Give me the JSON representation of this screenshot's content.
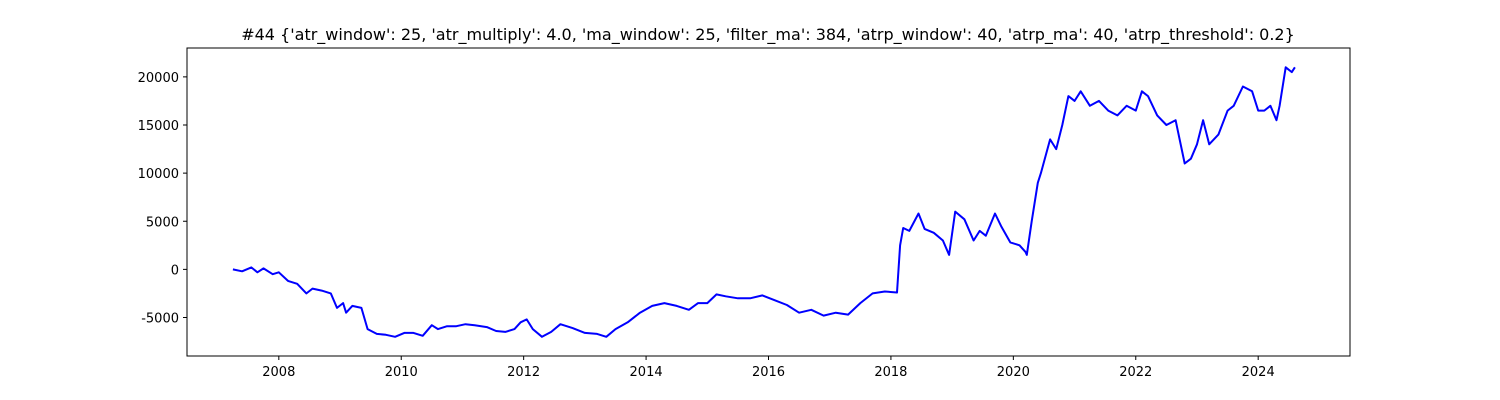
{
  "chart_data": {
    "type": "line",
    "title": "#44 {'atr_window': 25, 'atr_multiply': 4.0, 'ma_window': 25, 'filter_ma': 384, 'atrp_window': 40, 'atrp_ma': 40, 'atrp_threshold': 0.2}",
    "xlabel": "",
    "ylabel": "",
    "xlim": [
      2006.5,
      2025.5
    ],
    "ylim": [
      -9000,
      23000
    ],
    "x_ticks": [
      2008,
      2010,
      2012,
      2014,
      2016,
      2018,
      2020,
      2022,
      2024
    ],
    "y_ticks": [
      -5000,
      0,
      5000,
      10000,
      15000,
      20000
    ],
    "grid": false,
    "legend": "none",
    "line_color": "#0000ff",
    "series": [
      {
        "x": [
          2007.25,
          2007.4,
          2007.55,
          2007.65,
          2007.75,
          2007.9,
          2008.0,
          2008.15,
          2008.3,
          2008.45,
          2008.55,
          2008.7,
          2008.85,
          2008.95,
          2009.05,
          2009.1,
          2009.2,
          2009.35,
          2009.45,
          2009.6,
          2009.75,
          2009.9,
          2010.05,
          2010.2,
          2010.35,
          2010.5,
          2010.6,
          2010.75,
          2010.9,
          2011.05,
          2011.2,
          2011.4,
          2011.55,
          2011.7,
          2011.85,
          2011.95,
          2012.05,
          2012.15,
          2012.3,
          2012.45,
          2012.6,
          2012.8,
          2013.0,
          2013.2,
          2013.35,
          2013.5,
          2013.7,
          2013.9,
          2014.1,
          2014.3,
          2014.5,
          2014.7,
          2014.85,
          2015.0,
          2015.15,
          2015.3,
          2015.5,
          2015.7,
          2015.9,
          2016.1,
          2016.3,
          2016.5,
          2016.7,
          2016.9,
          2017.1,
          2017.3,
          2017.5,
          2017.7,
          2017.9,
          2018.1,
          2018.15,
          2018.2,
          2018.3,
          2018.45,
          2018.55,
          2018.7,
          2018.85,
          2018.95,
          2019.05,
          2019.2,
          2019.35,
          2019.45,
          2019.55,
          2019.7,
          2019.8,
          2019.95,
          2020.1,
          2020.2,
          2020.22,
          2020.3,
          2020.4,
          2020.45,
          2020.6,
          2020.7,
          2020.8,
          2020.9,
          2021.0,
          2021.1,
          2021.25,
          2021.4,
          2021.55,
          2021.7,
          2021.85,
          2022.0,
          2022.1,
          2022.2,
          2022.35,
          2022.5,
          2022.65,
          2022.8,
          2022.9,
          2023.0,
          2023.1,
          2023.2,
          2023.35,
          2023.5,
          2023.6,
          2023.75,
          2023.9,
          2024.0,
          2024.1,
          2024.2,
          2024.3,
          2024.35,
          2024.45,
          2024.55,
          2024.6
        ],
        "y": [
          0,
          -200,
          200,
          -300,
          100,
          -500,
          -300,
          -1200,
          -1500,
          -2500,
          -2000,
          -2200,
          -2500,
          -4000,
          -3500,
          -4500,
          -3800,
          -4000,
          -6200,
          -6700,
          -6800,
          -7000,
          -6600,
          -6600,
          -6900,
          -5800,
          -6200,
          -5900,
          -5900,
          -5700,
          -5800,
          -6000,
          -6400,
          -6500,
          -6200,
          -5500,
          -5200,
          -6200,
          -7000,
          -6500,
          -5700,
          -6100,
          -6600,
          -6700,
          -7000,
          -6200,
          -5500,
          -4500,
          -3800,
          -3500,
          -3800,
          -4200,
          -3500,
          -3500,
          -2600,
          -2800,
          -3000,
          -3000,
          -2700,
          -3200,
          -3700,
          -4500,
          -4200,
          -4800,
          -4500,
          -4700,
          -3500,
          -2500,
          -2300,
          -2400,
          2500,
          4300,
          4000,
          5800,
          4200,
          3800,
          3000,
          1500,
          6000,
          5200,
          3000,
          4000,
          3500,
          5800,
          4500,
          2800,
          2500,
          1800,
          1500,
          5000,
          9000,
          10000,
          13500,
          12500,
          15000,
          18000,
          17500,
          18500,
          17000,
          17500,
          16500,
          16000,
          17000,
          16500,
          18500,
          18000,
          16000,
          15000,
          15500,
          11000,
          11500,
          13000,
          15500,
          13000,
          14000,
          16500,
          17000,
          19000,
          18500,
          16500,
          16500,
          17000,
          15500,
          17000,
          21000,
          20500,
          21000
        ]
      }
    ]
  }
}
